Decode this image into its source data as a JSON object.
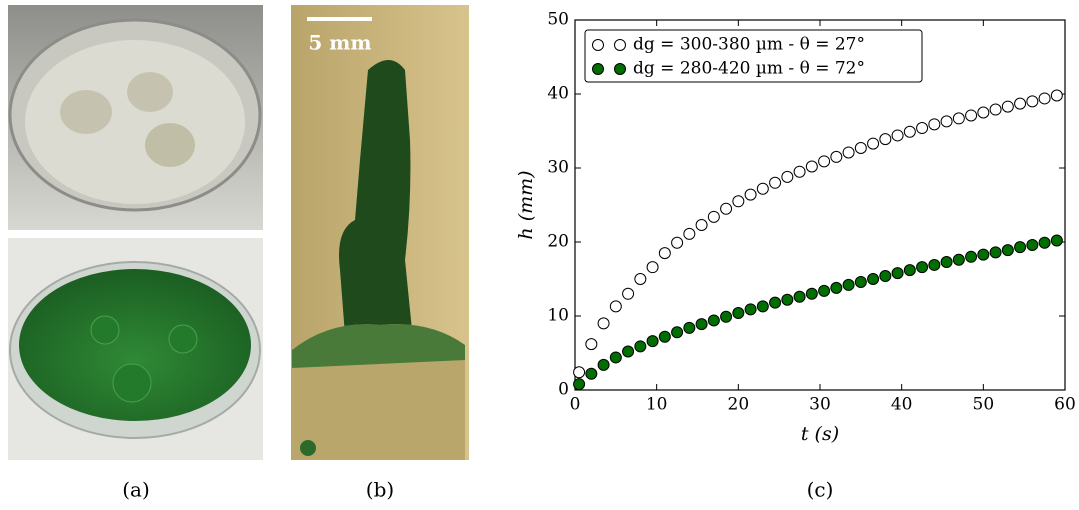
{
  "panels": {
    "a_label": "(a)",
    "b_label": "(b)",
    "c_label": "(c)",
    "scale_bar": "5 mm"
  },
  "chart_data": {
    "type": "scatter",
    "x_label": "t (s)",
    "y_label": "h (mm)",
    "x": [
      0.5,
      2,
      3.5,
      5,
      6.5,
      8,
      9.5,
      11,
      12.5,
      14,
      15.5,
      17,
      18.5,
      20,
      21.5,
      23,
      24.5,
      26,
      27.5,
      29,
      30.5,
      32,
      33.5,
      35,
      36.5,
      38,
      39.5,
      41,
      42.5,
      44,
      45.5,
      47,
      48.5,
      50,
      51.5,
      53,
      54.5,
      56,
      57.5,
      59
    ],
    "series": [
      {
        "name": "dg = 300-380 µm - θ = 27°",
        "color": "#ffffff",
        "values": [
          2.4,
          6.2,
          9.0,
          11.3,
          13.0,
          15.0,
          16.6,
          18.5,
          19.9,
          21.1,
          22.3,
          23.4,
          24.5,
          25.5,
          26.4,
          27.2,
          28.0,
          28.8,
          29.5,
          30.2,
          30.9,
          31.5,
          32.1,
          32.7,
          33.3,
          33.9,
          34.4,
          34.9,
          35.4,
          35.9,
          36.3,
          36.7,
          37.1,
          37.5,
          37.9,
          38.3,
          38.7,
          39.0,
          39.4,
          39.8
        ]
      },
      {
        "name": "dg = 280-420 µm - θ = 72°",
        "color": "#006e00",
        "values": [
          0.8,
          2.2,
          3.4,
          4.4,
          5.2,
          5.9,
          6.6,
          7.2,
          7.8,
          8.4,
          8.9,
          9.4,
          9.9,
          10.4,
          10.9,
          11.3,
          11.8,
          12.2,
          12.6,
          13.0,
          13.4,
          13.8,
          14.2,
          14.6,
          15.0,
          15.4,
          15.8,
          16.2,
          16.6,
          16.9,
          17.3,
          17.6,
          18.0,
          18.3,
          18.6,
          18.9,
          19.3,
          19.6,
          19.9,
          20.2
        ]
      }
    ],
    "xlim": [
      0,
      60
    ],
    "ylim": [
      0,
      50
    ],
    "xticks": [
      0,
      10,
      20,
      30,
      40,
      50,
      60
    ],
    "yticks": [
      0,
      10,
      20,
      30,
      40,
      50
    ],
    "legend": "upper left"
  }
}
